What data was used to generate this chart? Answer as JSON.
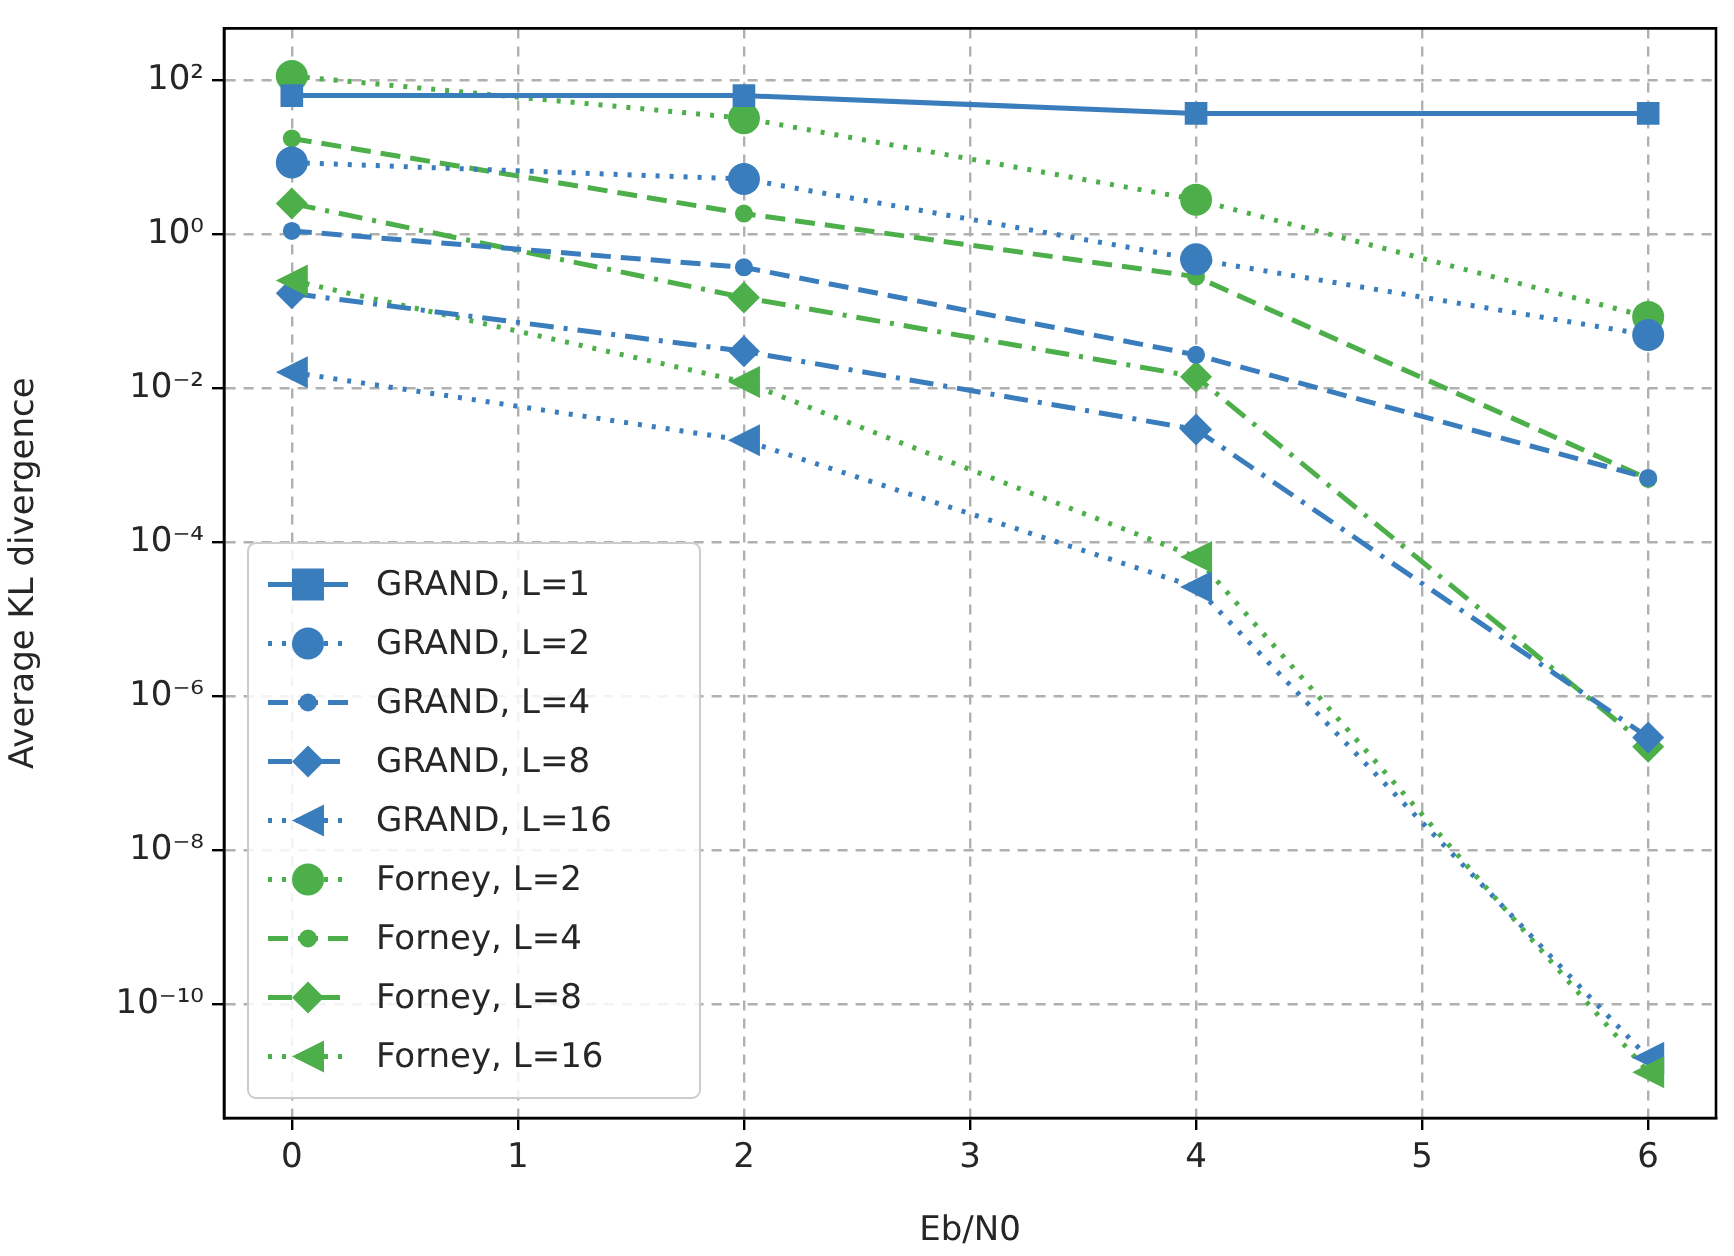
{
  "chart_data": {
    "type": "line",
    "xlabel": "Eb/N0",
    "ylabel": "Average KL divergence",
    "log": "y",
    "grid": true,
    "legend": "bottom left",
    "x": [
      0,
      2,
      4,
      6
    ],
    "xlim": [
      -0.3,
      6.3
    ],
    "xticks": [
      0,
      1,
      2,
      3,
      4,
      5,
      6
    ],
    "ylim": [
      3.3e-12,
      470
    ],
    "yticks": [
      {
        "value": 100,
        "label": "10²"
      },
      {
        "value": 1,
        "label": "10⁰"
      },
      {
        "value": 0.01,
        "label": "10⁻²"
      },
      {
        "value": 0.0001,
        "label": "10⁻⁴"
      },
      {
        "value": 1e-06,
        "label": "10⁻⁶"
      },
      {
        "value": 1e-08,
        "label": "10⁻⁸"
      },
      {
        "value": 1e-10,
        "label": "10⁻¹⁰"
      }
    ],
    "series": [
      {
        "name": "GRAND, L=1",
        "color": "#3a7dbd",
        "marker": "square",
        "line_style": "solid",
        "values": [
          63,
          63,
          37,
          37
        ]
      },
      {
        "name": "GRAND, L=2",
        "color": "#3a7dbd",
        "marker": "circle",
        "line_style": "dotted",
        "values": [
          8.5,
          5.2,
          0.47,
          0.049
        ]
      },
      {
        "name": "GRAND, L=4",
        "color": "#3a7dbd",
        "marker": "small-circle",
        "line_style": "dashed",
        "values": [
          1.1,
          0.37,
          0.027,
          0.00068
        ]
      },
      {
        "name": "GRAND, L=8",
        "color": "#3a7dbd",
        "marker": "diamond",
        "line_style": "dashdot",
        "values": [
          0.17,
          0.03,
          0.0029,
          2.9e-07
        ]
      },
      {
        "name": "GRAND, L=16",
        "color": "#3a7dbd",
        "marker": "triangle-left",
        "line_style": "dotted",
        "values": [
          0.016,
          0.0021,
          2.6e-05,
          2e-11
        ]
      },
      {
        "name": "Forney, L=2",
        "color": "#4daf4a",
        "marker": "circle",
        "line_style": "dotted",
        "values": [
          113,
          32,
          2.8,
          0.084
        ]
      },
      {
        "name": "Forney, L=4",
        "color": "#4daf4a",
        "marker": "small-circle",
        "line_style": "dashed",
        "values": [
          17.5,
          1.85,
          0.28,
          0.00066
        ]
      },
      {
        "name": "Forney, L=8",
        "color": "#4daf4a",
        "marker": "diamond",
        "line_style": "dashdot",
        "values": [
          2.5,
          0.15,
          0.014,
          2.2e-07
        ]
      },
      {
        "name": "Forney, L=16",
        "color": "#4daf4a",
        "marker": "triangle-left",
        "line_style": "dotted",
        "values": [
          0.25,
          0.012,
          6.4e-05,
          1.3e-11
        ]
      }
    ]
  }
}
